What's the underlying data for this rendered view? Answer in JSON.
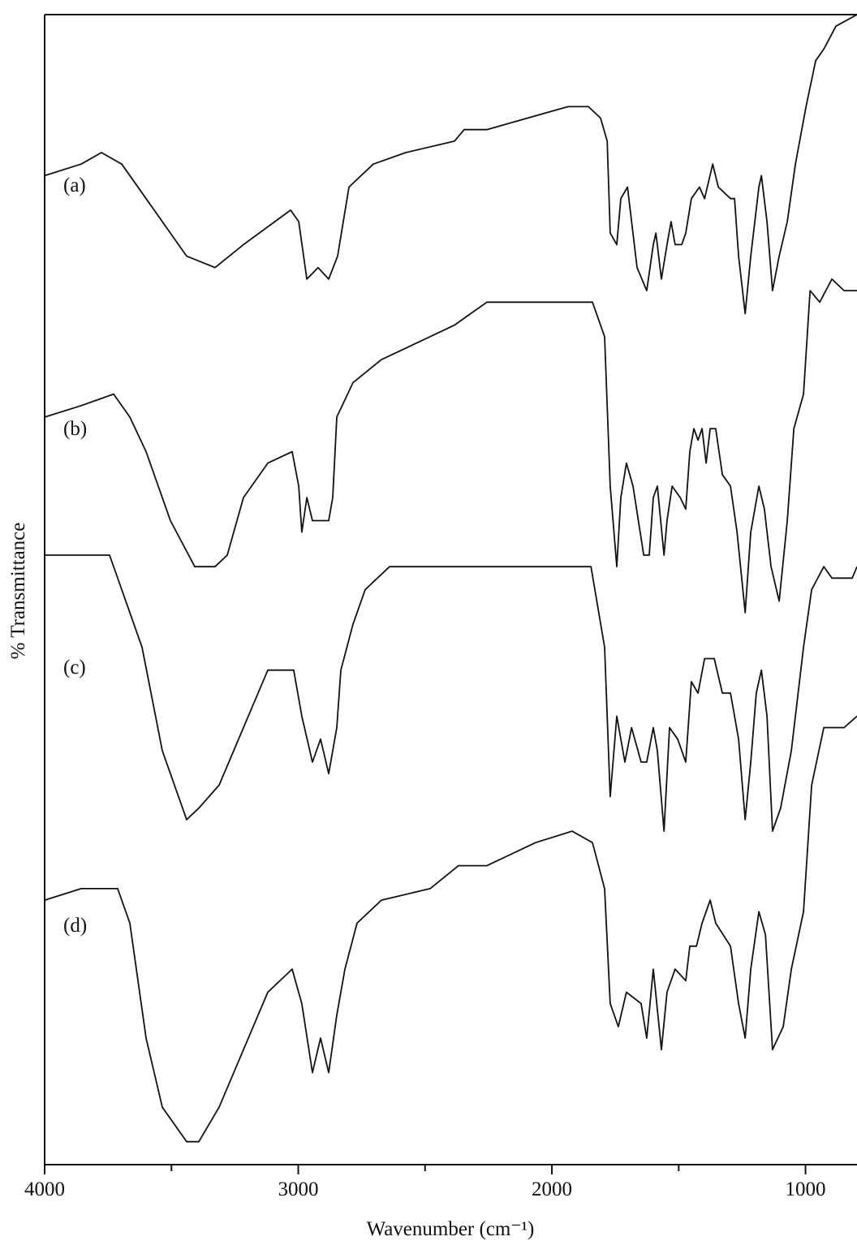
{
  "chart_data": {
    "type": "line",
    "x_label": "Wavenumber (cm⁻¹)",
    "y_label": "% Transmittance",
    "xlim": [
      4000,
      797
    ],
    "ylim": [
      0,
      100
    ],
    "xticks": [
      4000,
      3000,
      2000,
      1000
    ],
    "xminor_ticks": [
      3500,
      2500,
      1500
    ],
    "series": [
      {
        "name": "(a)",
        "color": "#111111",
        "x": [
          4000,
          3856,
          3776,
          3696,
          3600,
          3440,
          3328,
          3216,
          3030,
          2998,
          2966,
          2922,
          2880,
          2845,
          2800,
          2704,
          2576,
          2384,
          2346,
          2320,
          2256,
          2096,
          1936,
          1856,
          1808,
          1782,
          1770,
          1744,
          1728,
          1702,
          1664,
          1626,
          1600,
          1590,
          1568,
          1546,
          1530,
          1514,
          1488,
          1472,
          1450,
          1418,
          1398,
          1366,
          1344,
          1296,
          1280,
          1264,
          1238,
          1216,
          1184,
          1174,
          1152,
          1130,
          1104,
          1072,
          1040,
          998,
          960,
          928,
          880,
          797
        ],
        "values": [
          86,
          87,
          88,
          87,
          84,
          79,
          78,
          80,
          83,
          82,
          77,
          78,
          77,
          79,
          85,
          87,
          88,
          89,
          90,
          90,
          90,
          91,
          92,
          92,
          91,
          89,
          81,
          80,
          84,
          85,
          78,
          76,
          80,
          81,
          77,
          80,
          82,
          80,
          80,
          81,
          84,
          85,
          84,
          87,
          85,
          84,
          84,
          79,
          74,
          79,
          85,
          86,
          82,
          76,
          79,
          82,
          87,
          92,
          96,
          97,
          99,
          100
        ]
      },
      {
        "name": "(b)",
        "color": "#111111",
        "x": [
          4000,
          3856,
          3728,
          3664,
          3600,
          3504,
          3408,
          3328,
          3280,
          3216,
          3120,
          3024,
          2998,
          2986,
          2966,
          2944,
          2912,
          2880,
          2864,
          2848,
          2784,
          2672,
          2480,
          2384,
          2320,
          2256,
          2064,
          1936,
          1840,
          1792,
          1770,
          1744,
          1728,
          1706,
          1680,
          1638,
          1616,
          1600,
          1584,
          1558,
          1546,
          1526,
          1494,
          1472,
          1456,
          1440,
          1424,
          1408,
          1392,
          1376,
          1354,
          1328,
          1296,
          1270,
          1238,
          1216,
          1184,
          1162,
          1136,
          1104,
          1072,
          1046,
          1008,
          982,
          944,
          896,
          848,
          797
        ],
        "values": [
          65,
          66,
          67,
          65,
          62,
          56,
          52,
          52,
          53,
          58,
          61,
          62,
          59,
          55,
          58,
          56,
          56,
          56,
          58,
          65,
          68,
          70,
          72,
          73,
          74,
          75,
          75,
          75,
          75,
          72,
          59,
          52,
          58,
          61,
          59,
          53,
          53,
          58,
          59,
          53,
          56,
          59,
          58,
          57,
          62,
          64,
          63,
          64,
          61,
          64,
          64,
          60,
          59,
          55,
          48,
          55,
          59,
          57,
          52,
          49,
          56,
          64,
          67,
          76,
          75,
          77,
          76,
          76
        ]
      },
      {
        "name": "(c)",
        "color": "#111111",
        "x": [
          4000,
          3856,
          3760,
          3744,
          3696,
          3616,
          3536,
          3440,
          3392,
          3312,
          3216,
          3120,
          3056,
          3018,
          2986,
          2944,
          2912,
          2880,
          2848,
          2832,
          2784,
          2736,
          2640,
          2384,
          2256,
          1936,
          1846,
          1792,
          1770,
          1744,
          1712,
          1686,
          1648,
          1626,
          1600,
          1584,
          1558,
          1536,
          1504,
          1472,
          1450,
          1424,
          1398,
          1360,
          1328,
          1296,
          1264,
          1238,
          1216,
          1194,
          1174,
          1152,
          1130,
          1098,
          1056,
          1008,
          976,
          928,
          896,
          864,
          816,
          797
        ],
        "values": [
          53,
          53,
          53,
          53,
          50,
          45,
          36,
          30,
          31,
          33,
          38,
          43,
          43,
          43,
          39,
          35,
          37,
          34,
          38,
          43,
          47,
          50,
          52,
          52,
          52,
          52,
          52,
          45,
          32,
          39,
          35,
          38,
          35,
          35,
          38,
          36,
          29,
          38,
          37,
          35,
          42,
          41,
          44,
          44,
          41,
          41,
          37,
          30,
          35,
          41,
          43,
          39,
          29,
          31,
          36,
          45,
          50,
          52,
          51,
          51,
          51,
          52
        ]
      },
      {
        "name": "(d)",
        "color": "#111111",
        "x": [
          4000,
          3856,
          3760,
          3712,
          3664,
          3600,
          3536,
          3440,
          3392,
          3312,
          3216,
          3120,
          3024,
          2986,
          2944,
          2912,
          2880,
          2848,
          2816,
          2768,
          2672,
          2480,
          2368,
          2256,
          2064,
          1920,
          1840,
          1792,
          1770,
          1738,
          1706,
          1648,
          1626,
          1600,
          1568,
          1546,
          1514,
          1472,
          1456,
          1430,
          1408,
          1376,
          1354,
          1296,
          1264,
          1238,
          1216,
          1184,
          1158,
          1130,
          1088,
          1056,
          1008,
          976,
          928,
          880,
          848,
          797
        ],
        "values": [
          23,
          24,
          24,
          24,
          21,
          11,
          5,
          2,
          2,
          5,
          10,
          15,
          17,
          14,
          8,
          11,
          8,
          13,
          17,
          21,
          23,
          24,
          26,
          26,
          28,
          29,
          28,
          24,
          14,
          12,
          15,
          14,
          11,
          17,
          10,
          15,
          17,
          16,
          19,
          19,
          21,
          23,
          21,
          19,
          14,
          11,
          17,
          22,
          20,
          10,
          12,
          17,
          22,
          33,
          38,
          38,
          38,
          39
        ]
      }
    ]
  }
}
